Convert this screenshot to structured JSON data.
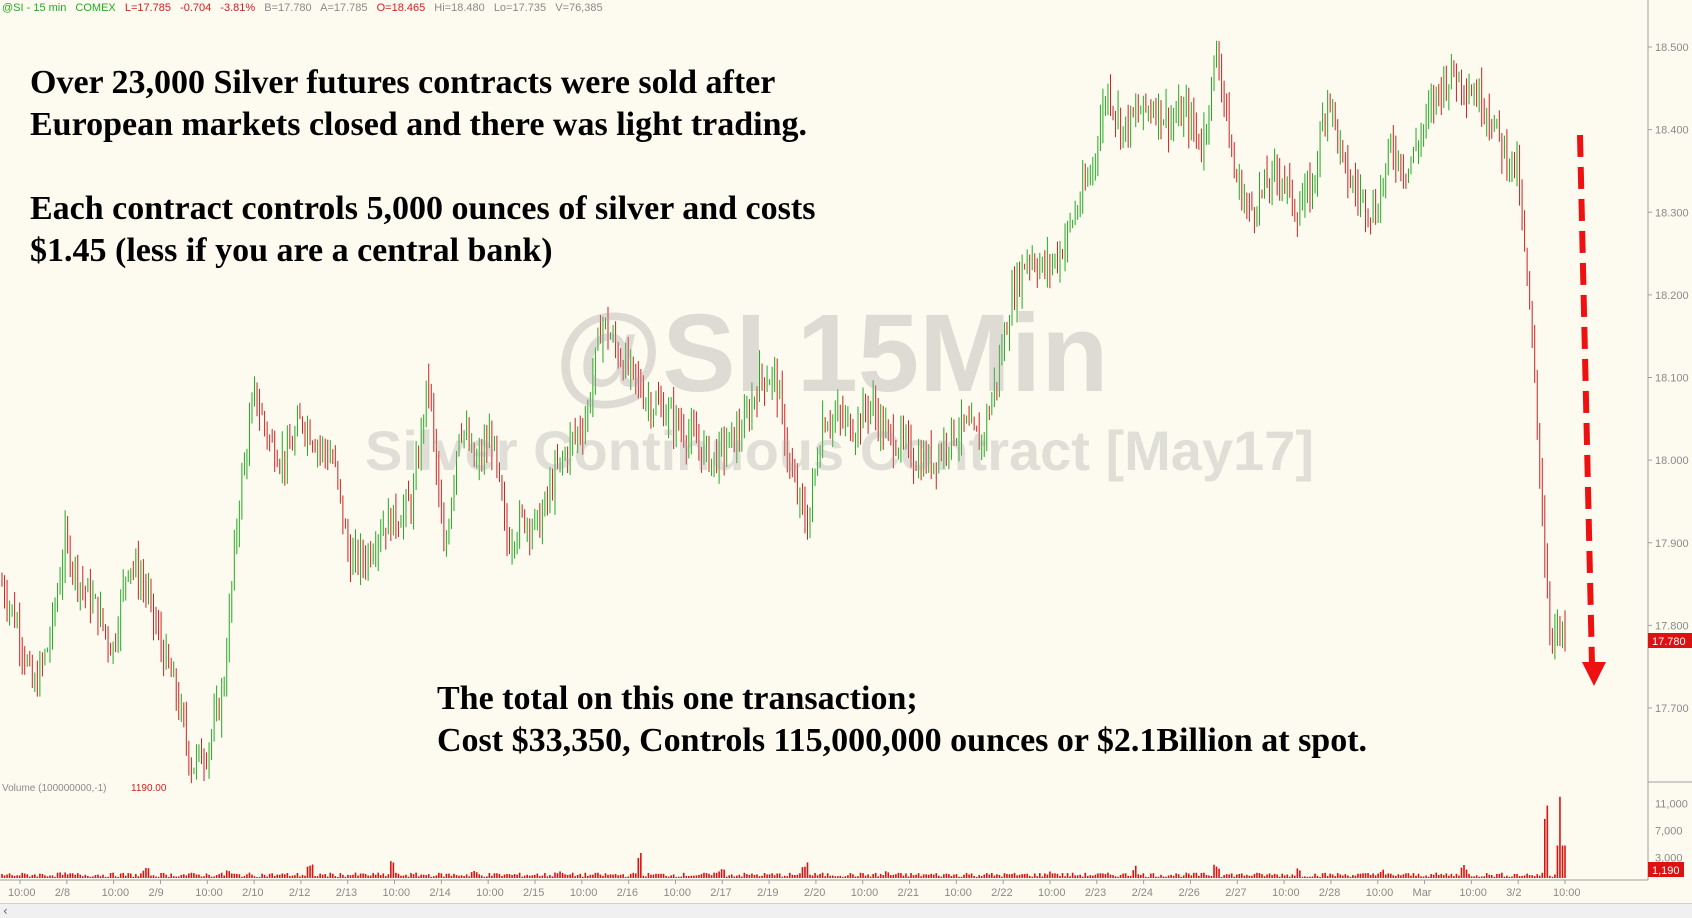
{
  "header": {
    "symbol": "@SI - 15 min",
    "exchange": "COMEX",
    "last": "L=17.785",
    "change": "-0.704",
    "change_pct": "-3.81%",
    "bid": "B=17.780",
    "ask": "A=17.785",
    "open": "O=18.465",
    "high": "Hi=18.480",
    "low": "Lo=17.735",
    "volume": "V=76,385"
  },
  "watermark": {
    "title": "@SI 15Min",
    "subtitle": "Silver Continuous Contract [May17]"
  },
  "annotations": {
    "top_line1": "Over 23,000 Silver futures contracts were sold after",
    "top_line2": "European markets closed and there was light trading.",
    "top_line3": "Each contract controls 5,000 ounces of silver and costs",
    "top_line4": "$1.45 (less if you are a central bank)",
    "bottom_line1": "The total on this one transaction;",
    "bottom_line2": "Cost $33,350, Controls 115,000,000 ounces or $2.1Billion at spot."
  },
  "volume_panel": {
    "label": "Volume (100000000,-1)",
    "value": "1190.00"
  },
  "colors": {
    "up": "#22aa22",
    "down": "#cc2222",
    "volume": "#dd1111",
    "arrow": "#ee1111",
    "watermark": "#a0a0a0"
  },
  "chart_data": {
    "type": "line",
    "series": [
      {
        "values": [
          17.85,
          17.8,
          17.72,
          17.78,
          17.9,
          17.85,
          17.82,
          17.77,
          17.88,
          17.85,
          17.78,
          17.72,
          17.63,
          17.65,
          17.72,
          17.95,
          18.08,
          18.02,
          18.0,
          18.05,
          18.02,
          18.0,
          17.88,
          17.88,
          17.92,
          17.93,
          17.95,
          18.1,
          17.88,
          18.05,
          17.99,
          18.03,
          17.9,
          17.93,
          17.92,
          17.98,
          18.02,
          18.05,
          18.17,
          18.13,
          18.1,
          18.07,
          18.06,
          18.04,
          18.02,
          18.0,
          18.02,
          18.04,
          18.1,
          18.1,
          17.98,
          17.92,
          18.05,
          18.05,
          18.04,
          18.07,
          18.03,
          18.02,
          18.0,
          18.0,
          18.03,
          18.04,
          18.02,
          18.1,
          18.2,
          18.25,
          18.23,
          18.25,
          18.3,
          18.35,
          18.45,
          18.4,
          18.42,
          18.43,
          18.41,
          18.42,
          18.38,
          18.5,
          18.35,
          18.3,
          18.33,
          18.35,
          18.3,
          18.33,
          18.45,
          18.35,
          18.32,
          18.3,
          18.38,
          18.35,
          18.4,
          18.45,
          18.47,
          18.45,
          18.43,
          18.38,
          18.35,
          18.12,
          17.8,
          17.78
        ]
      }
    ],
    "x_ticks": [
      "10:00",
      "2/8",
      "10:00",
      "2/9",
      "10:00",
      "2/10",
      "2/12",
      "2/13",
      "10:00",
      "2/14",
      "10:00",
      "2/15",
      "10:00",
      "2/16",
      "10:00",
      "2/17",
      "2/19",
      "2/20",
      "10:00",
      "2/21",
      "10:00",
      "2/22",
      "10:00",
      "2/23",
      "2/24",
      "2/26",
      "2/27",
      "10:00",
      "2/28",
      "10:00",
      "Mar",
      "10:00",
      "3/2",
      "10:00"
    ],
    "y_ticks": [
      "18.500",
      "18.400",
      "18.300",
      "18.200",
      "18.100",
      "18.000",
      "17.900",
      "17.800",
      "17.700"
    ],
    "ylim": [
      17.6,
      18.55
    ],
    "last_price_label": "17.780",
    "volume": {
      "y_ticks": [
        "11,000",
        "7,000",
        "3,000"
      ],
      "ylim": [
        0,
        13000
      ],
      "last_label": "1,190",
      "spikes": [
        900,
        1500,
        1300,
        2200,
        3600,
        1100,
        1300,
        3800,
        1700,
        2800,
        1100,
        900,
        1200,
        2000,
        2400,
        1700,
        1300,
        2200,
        12000
      ]
    }
  }
}
